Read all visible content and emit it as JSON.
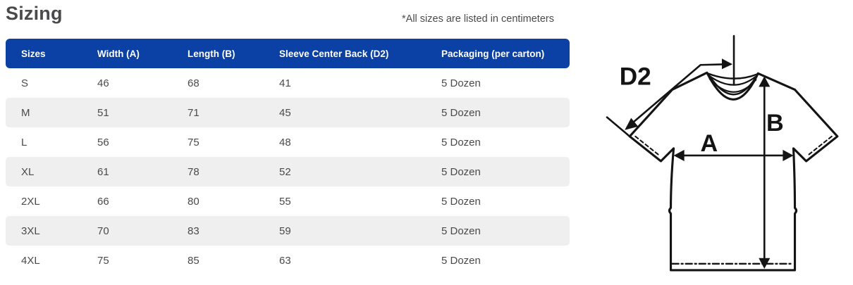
{
  "page": {
    "title": "Sizing",
    "note": "*All sizes are listed in centimeters"
  },
  "table": {
    "columns": [
      "Sizes",
      "Width (A)",
      "Length (B)",
      "Sleeve Center Back (D2)",
      "Packaging (per carton)"
    ],
    "rows": [
      [
        "S",
        "46",
        "68",
        "41",
        "5 Dozen"
      ],
      [
        "M",
        "51",
        "71",
        "45",
        "5 Dozen"
      ],
      [
        "L",
        "56",
        "75",
        "48",
        "5 Dozen"
      ],
      [
        "XL",
        "61",
        "78",
        "52",
        "5 Dozen"
      ],
      [
        "2XL",
        "66",
        "80",
        "55",
        "5 Dozen"
      ],
      [
        "3XL",
        "70",
        "83",
        "59",
        "5 Dozen"
      ],
      [
        "4XL",
        "75",
        "85",
        "63",
        "5 Dozen"
      ]
    ]
  },
  "diagram": {
    "labels": {
      "sleeve": "D2",
      "width": "A",
      "length": "B"
    }
  },
  "colors": {
    "header_bg": "#0b41a4",
    "header_text": "#ffffff",
    "row_alt_bg": "#efefef",
    "body_text": "#4a4a4c",
    "line": "#141414"
  }
}
